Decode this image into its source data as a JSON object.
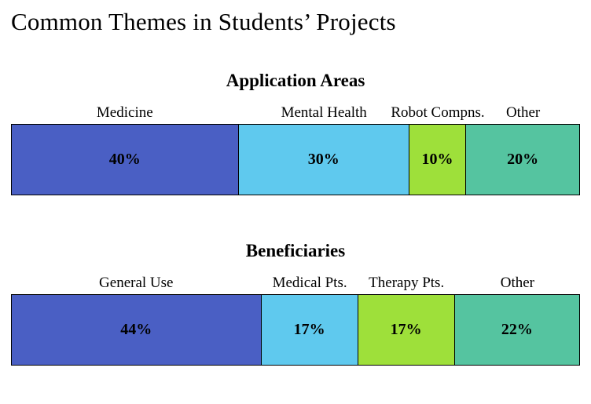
{
  "page_title": "Common Themes in Students’ Projects",
  "chart_data": [
    {
      "type": "bar",
      "orientation": "horizontal-stacked",
      "title": "Application Areas",
      "categories": [
        "Medicine",
        "Mental Health",
        "Robot Compns.",
        "Other"
      ],
      "values": [
        40,
        30,
        10,
        20
      ],
      "value_labels": [
        "40%",
        "30%",
        "10%",
        "20%"
      ],
      "colors": [
        "#4a5fc4",
        "#5fc9ee",
        "#9ee03a",
        "#55c4a0"
      ],
      "xlim": [
        0,
        100
      ],
      "grid": false,
      "legend": "labels-above-segments"
    },
    {
      "type": "bar",
      "orientation": "horizontal-stacked",
      "title": "Beneficiaries",
      "categories": [
        "General Use",
        "Medical Pts.",
        "Therapy Pts.",
        "Other"
      ],
      "values": [
        44,
        17,
        17,
        22
      ],
      "value_labels": [
        "44%",
        "17%",
        "17%",
        "22%"
      ],
      "colors": [
        "#4a5fc4",
        "#5fc9ee",
        "#9ee03a",
        "#55c4a0"
      ],
      "xlim": [
        0,
        100
      ],
      "grid": false,
      "legend": "labels-above-segments"
    }
  ]
}
